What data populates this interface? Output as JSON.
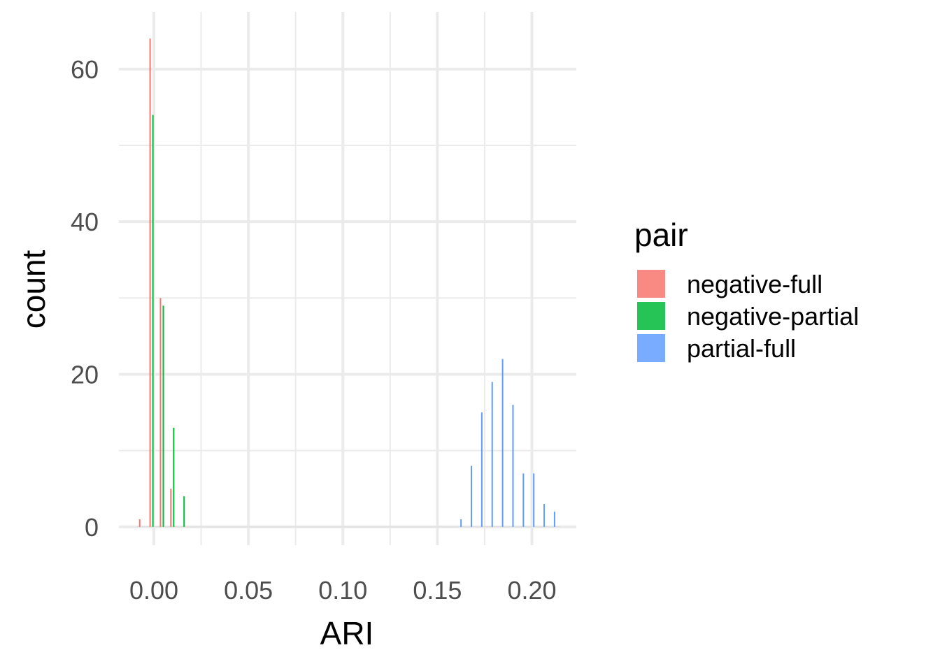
{
  "chart_data": {
    "type": "bar",
    "title": "",
    "xlabel": "ARI",
    "ylabel": "count",
    "xlim": [
      -0.0185,
      0.2235
    ],
    "ylim": [
      -2.4,
      67.5
    ],
    "x_ticks": [
      0.0,
      0.05,
      0.1,
      0.15,
      0.2
    ],
    "x_tick_labels": [
      "0.00",
      "0.05",
      "0.10",
      "0.15",
      "0.20"
    ],
    "y_ticks": [
      0,
      20,
      40,
      60
    ],
    "y_tick_labels": [
      "0",
      "20",
      "40",
      "60"
    ],
    "grid": true,
    "legend": {
      "title": "pair",
      "position": "right",
      "entries": [
        "negative-full",
        "negative-partial",
        "partial-full"
      ]
    },
    "series": [
      {
        "name": "negative-full",
        "color": "#F8766D",
        "x": [
          -0.0075,
          -0.002,
          0.0035,
          0.009
        ],
        "values": [
          1,
          64,
          30,
          5
        ]
      },
      {
        "name": "negative-partial",
        "color": "#00BA38",
        "x": [
          -0.0005,
          0.005,
          0.0105,
          0.016
        ],
        "values": [
          54,
          29,
          13,
          4
        ]
      },
      {
        "name": "partial-full",
        "color": "#619CFF",
        "x": [
          0.1625,
          0.168,
          0.1735,
          0.179,
          0.1845,
          0.19,
          0.1955,
          0.201,
          0.2065,
          0.212
        ],
        "values": [
          1,
          8,
          15,
          19,
          22,
          16,
          7,
          7,
          3,
          2
        ]
      }
    ]
  }
}
